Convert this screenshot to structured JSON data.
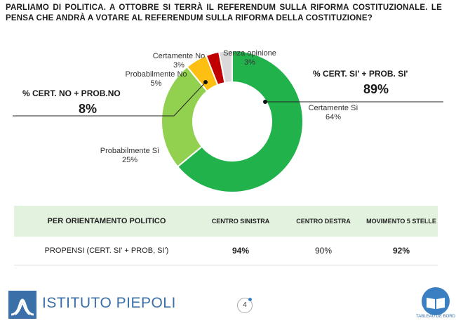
{
  "question": "PARLIAMO DI POLITICA. A OTTOBRE SI TERRÀ IL REFERENDUM SULLA RIFORMA COSTITUZIONALE. LE PENSA CHE ANDRÀ A VOTARE AL REFERENDUM SULLA RIFORMA DELLA COSTITUZIONE?",
  "chart_data": {
    "type": "pie",
    "donut": true,
    "slices": [
      {
        "label": "Certamente Sì",
        "value": 64,
        "display": "64%",
        "color": "#22b24c"
      },
      {
        "label": "Probabilmente Sì",
        "value": 25,
        "display": "25%",
        "color": "#92d050"
      },
      {
        "label": "Probabilmente No",
        "value": 5,
        "display": "5%",
        "color": "#fdbf12"
      },
      {
        "label": "Certamente No",
        "value": 3,
        "display": "3%",
        "color": "#c00000"
      },
      {
        "label": "Senza opinione",
        "value": 3,
        "display": "3%",
        "color": "#d9d9d9"
      }
    ],
    "callouts": {
      "yes": {
        "title": "% CERT. SI' + PROB. SI'",
        "value": "89%"
      },
      "no": {
        "title": "% CERT. NO + PROB.NO",
        "value": "8%"
      }
    }
  },
  "table": {
    "header": [
      "PER ORIENTAMENTO POLITICO",
      "CENTRO SINISTRA",
      "CENTRO DESTRA",
      "MOVIMENTO 5 STELLE"
    ],
    "row": {
      "label": "PROPENSI (CERT. SI' + PROB, SI')",
      "values": [
        "94%",
        "90%",
        "92%"
      ]
    }
  },
  "footer": {
    "logo_text": "ISTITUTO PIEPOLI",
    "page_number": "4",
    "badge_text": "TABLEAU DE BORD"
  }
}
